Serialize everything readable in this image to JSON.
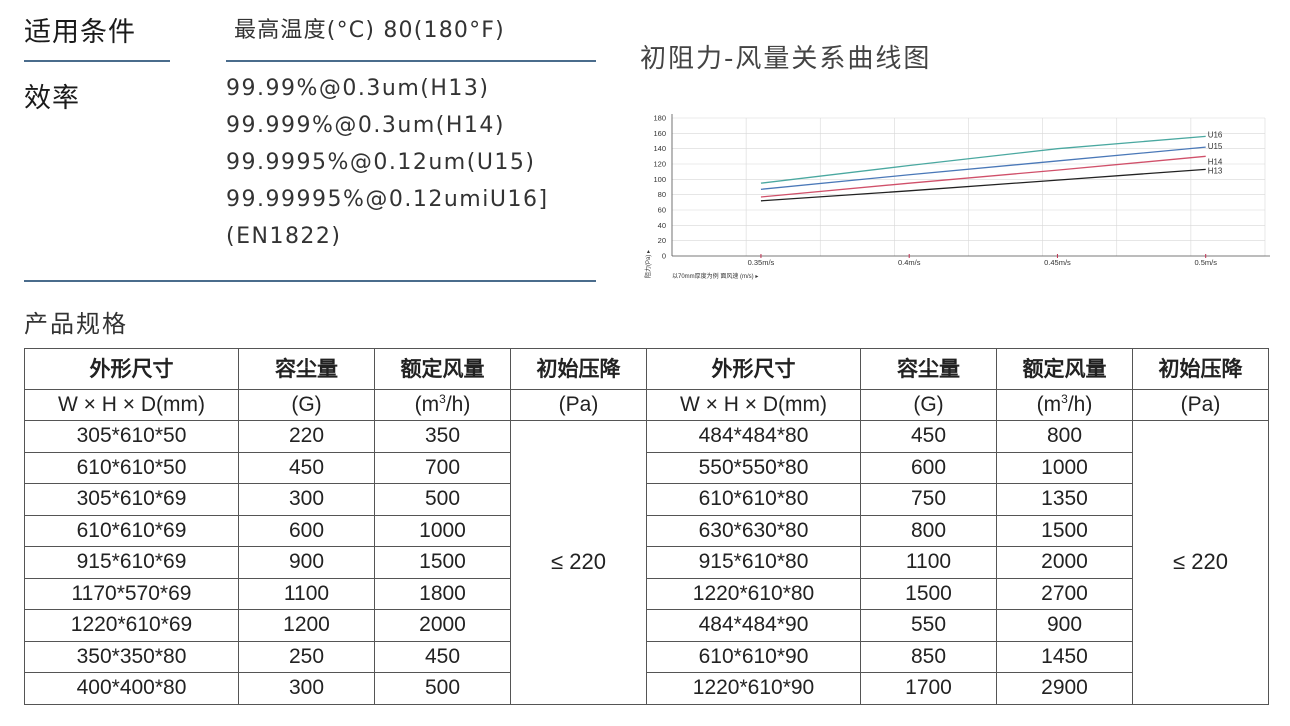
{
  "conditions": {
    "label": "适用条件",
    "value": "最高温度(°C) 80(180°F)"
  },
  "efficiency": {
    "label": "效率",
    "lines": [
      "99.99%@0.3um(H13)",
      "99.999%@0.3um(H14)",
      "99.9995%@0.12um(U15)",
      "99.99995%@0.12umiU16]",
      "(EN1822)"
    ]
  },
  "chart_title": "初阻力-风量关系曲线图",
  "chart_data": {
    "type": "line",
    "title": "初阻力-风量关系曲线图",
    "x": [
      "0.35m/s",
      "0.4m/s",
      "0.45m/s",
      "0.5m/s"
    ],
    "x_values": [
      0.35,
      0.4,
      0.45,
      0.5
    ],
    "xlim": [
      0.35,
      0.5
    ],
    "ylim": [
      0,
      180
    ],
    "yticks": [
      "180",
      "160",
      "140",
      "120",
      "100",
      "80",
      "60",
      "40",
      "20",
      "0"
    ],
    "ylabel": "阻力(Pa) ▸",
    "xlabel": "以70mm厚度为例  面风速 (m/s) ▸",
    "grid": true,
    "series": [
      {
        "name": "U16",
        "color": "#4aa8a0",
        "values": [
          95,
          118,
          140,
          156
        ]
      },
      {
        "name": "U15",
        "color": "#4a78b8",
        "values": [
          87,
          106,
          124,
          142
        ]
      },
      {
        "name": "H14",
        "color": "#d0506a",
        "values": [
          77,
          95,
          112,
          130
        ]
      },
      {
        "name": "H13",
        "color": "#222222",
        "values": [
          72,
          85,
          99,
          113
        ]
      }
    ]
  },
  "spec_section": "产品规格",
  "table": {
    "headers": [
      "外形尺寸",
      "容尘量",
      "额定风量",
      "初始压降",
      "外形尺寸",
      "容尘量",
      "额定风量",
      "初始压降"
    ],
    "units": {
      "size": "W × H × D(mm)",
      "dust": "(G)",
      "flow_prefix": "(m",
      "flow_sup": "3",
      "flow_suffix": "/h)",
      "pressure": "(Pa)"
    },
    "left_rows": [
      [
        "305*610*50",
        "220",
        "350"
      ],
      [
        "610*610*50",
        "450",
        "700"
      ],
      [
        "305*610*69",
        "300",
        "500"
      ],
      [
        "610*610*69",
        "600",
        "1000"
      ],
      [
        "915*610*69",
        "900",
        "1500"
      ],
      [
        "1170*570*69",
        "1100",
        "1800"
      ],
      [
        "1220*610*69",
        "1200",
        "2000"
      ],
      [
        "350*350*80",
        "250",
        "450"
      ],
      [
        "400*400*80",
        "300",
        "500"
      ]
    ],
    "right_rows": [
      [
        "484*484*80",
        "450",
        "800"
      ],
      [
        "550*550*80",
        "600",
        "1000"
      ],
      [
        "610*610*80",
        "750",
        "1350"
      ],
      [
        "630*630*80",
        "800",
        "1500"
      ],
      [
        "915*610*80",
        "1100",
        "2000"
      ],
      [
        "1220*610*80",
        "1500",
        "2700"
      ],
      [
        "484*484*90",
        "550",
        "900"
      ],
      [
        "610*610*90",
        "850",
        "1450"
      ],
      [
        "1220*610*90",
        "1700",
        "2900"
      ]
    ],
    "left_pressure": "≤ 220",
    "right_pressure": "≤ 220"
  }
}
